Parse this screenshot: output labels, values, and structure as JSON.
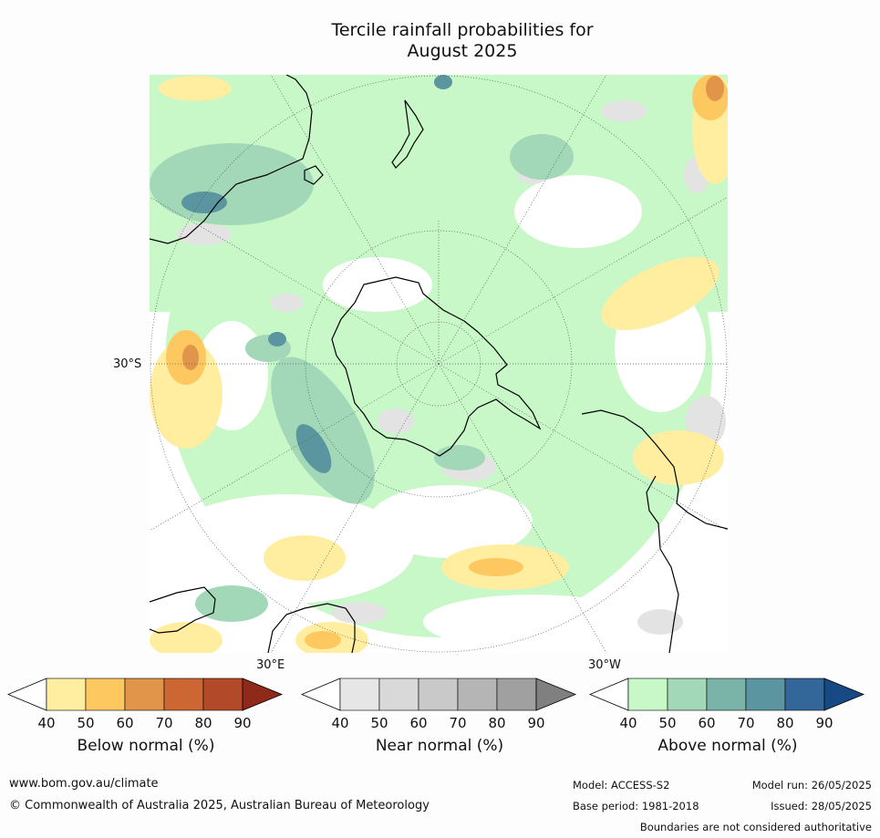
{
  "title_line1": "Tercile rainfall probabilities for",
  "title_line2": "August 2025",
  "map": {
    "lat_label": "30°S",
    "lon_label_east": "30°E",
    "lon_label_west": "30°W",
    "colors": {
      "land_outline": "#000000",
      "graticule": "#555555",
      "background": "#ffffff"
    }
  },
  "colorbars": [
    {
      "id": "below",
      "title": "Below normal (%)",
      "ticks": [
        "40",
        "50",
        "60",
        "70",
        "80",
        "90"
      ],
      "colors": [
        "#ffeda0",
        "#fec860",
        "#e0954a",
        "#cc6633",
        "#b24a2a",
        "#8f2a1a"
      ]
    },
    {
      "id": "near",
      "title": "Near normal (%)",
      "ticks": [
        "40",
        "50",
        "60",
        "70",
        "80",
        "90"
      ],
      "colors": [
        "#e6e6e6",
        "#d9d9d9",
        "#c9c9c9",
        "#b5b5b5",
        "#a0a0a0",
        "#808080"
      ]
    },
    {
      "id": "above",
      "title": "Above normal (%)",
      "ticks": [
        "40",
        "50",
        "60",
        "70",
        "80",
        "90"
      ],
      "colors": [
        "#c8f7c8",
        "#a2d8b8",
        "#7ab4a8",
        "#5a95a0",
        "#336699",
        "#174a85"
      ]
    }
  ],
  "footer": {
    "url": "www.bom.gov.au/climate",
    "copyright": "© Commonwealth of Australia 2025, Australian Bureau of Meteorology",
    "model": "Model: ACCESS-S2",
    "base_period": "Base period: 1981-2018",
    "model_run": "Model run: 26/05/2025",
    "issued": "Issued: 28/05/2025",
    "disclaimer": "Boundaries are not considered authoritative"
  }
}
